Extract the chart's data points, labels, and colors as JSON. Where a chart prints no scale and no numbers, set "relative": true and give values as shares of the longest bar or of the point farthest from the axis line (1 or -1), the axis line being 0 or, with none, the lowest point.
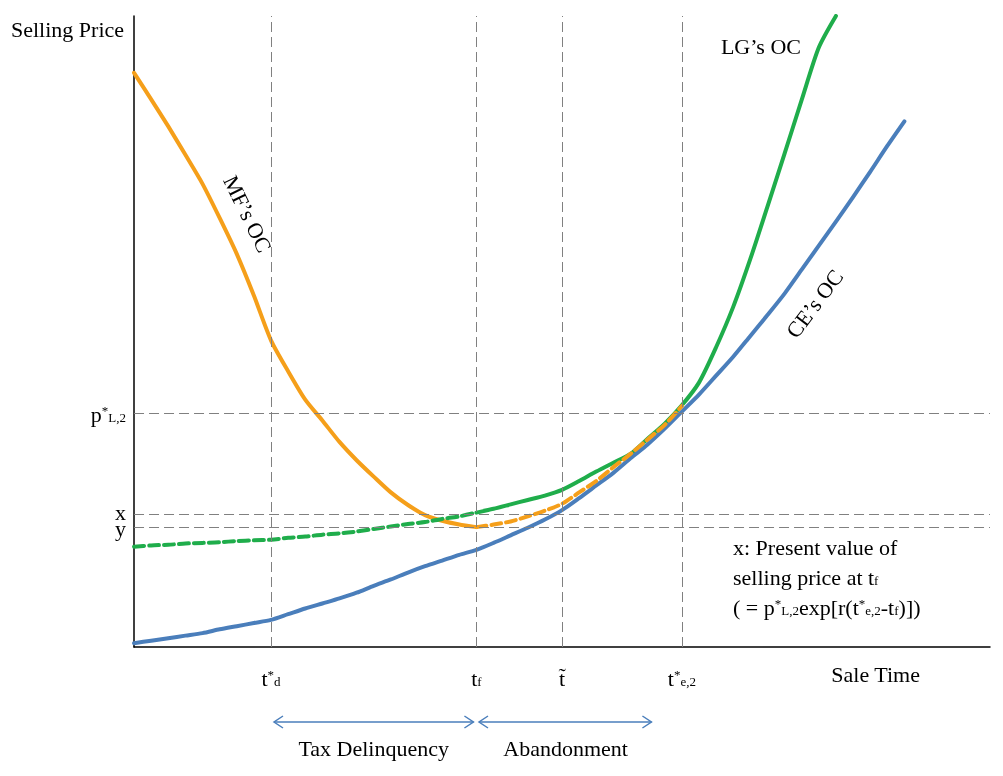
{
  "chart_data": {
    "type": "line",
    "relative": true,
    "xlabel": "Sale Time",
    "ylabel": "Selling Price",
    "marker": "none",
    "grid": false,
    "categories": [
      null,
      null,
      null,
      null,
      null,
      null,
      null,
      null,
      "t$^{*}$$_{d}$",
      null,
      null,
      null,
      null,
      null,
      null,
      null,
      null,
      null,
      null,
      null,
      "t$_{f}$",
      null,
      null,
      null,
      null,
      "t̃",
      null,
      null,
      null,
      null,
      null,
      null,
      "t$^{*}$$_{e,2}$",
      null,
      null,
      null,
      null,
      null,
      null,
      null,
      null,
      null,
      null,
      null,
      null,
      null,
      null,
      null,
      null,
      null,
      null
    ],
    "series": [
      {
        "name": "MF’s OC",
        "color": "#f59f1a",
        "line_style": "solid",
        "values": [
          0.91,
          0.868,
          0.825,
          0.78,
          0.734,
          0.68,
          0.623,
          0.557,
          0.486,
          0.437,
          0.392,
          0.359,
          0.325,
          0.296,
          0.27,
          0.245,
          0.225,
          0.209,
          0.2,
          0.194,
          0.19,
          null,
          null,
          null,
          null,
          null,
          null,
          null,
          null,
          null,
          null,
          null,
          null,
          null,
          null,
          null,
          null,
          null,
          null,
          null,
          null,
          null,
          null,
          null,
          null,
          null,
          null,
          null,
          null,
          null,
          null
        ]
      },
      {
        "color": "#f59f1a",
        "line_style": "dashed",
        "values": [
          null,
          null,
          null,
          null,
          null,
          null,
          null,
          null,
          null,
          null,
          null,
          null,
          null,
          null,
          null,
          null,
          null,
          null,
          null,
          null,
          0.19,
          0.194,
          0.199,
          0.207,
          0.216,
          0.227,
          0.245,
          0.263,
          0.285,
          0.306,
          0.329,
          0.352,
          0.382,
          null,
          null,
          null,
          null,
          null,
          null,
          null,
          null,
          null,
          null,
          null,
          null,
          null,
          null,
          null,
          null,
          null,
          null
        ]
      },
      {
        "color": "#1fad4b",
        "line_style": "dashed",
        "values": [
          0.159,
          0.161,
          0.162,
          0.164,
          0.165,
          0.166,
          0.168,
          0.169,
          0.17,
          0.173,
          0.175,
          0.178,
          0.18,
          0.183,
          0.187,
          0.191,
          0.195,
          0.198,
          0.203,
          0.207,
          0.213,
          null,
          null,
          null,
          null,
          null,
          null,
          null,
          null,
          null,
          null,
          null,
          null,
          null,
          null,
          null,
          null,
          null,
          null,
          null,
          null,
          null,
          null,
          null,
          null,
          null,
          null,
          null,
          null,
          null,
          null
        ]
      },
      {
        "name": "LG’s OC",
        "color": "#1fad4b",
        "line_style": "solid",
        "values": [
          null,
          null,
          null,
          null,
          null,
          null,
          null,
          null,
          null,
          null,
          null,
          null,
          null,
          null,
          null,
          null,
          null,
          null,
          null,
          null,
          0.213,
          0.219,
          0.226,
          0.233,
          0.24,
          0.249,
          0.263,
          0.278,
          0.292,
          0.306,
          0.33,
          0.354,
          0.383,
          0.419,
          0.475,
          0.539,
          0.615,
          0.698,
          0.782,
          0.867,
          0.95,
          1.0,
          null,
          null,
          null,
          null,
          null,
          null,
          null,
          null,
          null
        ]
      },
      {
        "name": "CE’s OC",
        "color": "#4a7ebb",
        "line_style": "solid",
        "values": [
          0.006,
          0.01,
          0.014,
          0.018,
          0.022,
          0.028,
          0.033,
          0.038,
          0.043,
          0.052,
          0.061,
          0.069,
          0.077,
          0.086,
          0.097,
          0.107,
          0.118,
          0.128,
          0.137,
          0.146,
          0.154,
          0.165,
          0.177,
          0.189,
          0.202,
          0.217,
          0.236,
          0.256,
          0.276,
          0.299,
          0.321,
          0.346,
          0.373,
          0.4,
          0.43,
          0.46,
          0.493,
          0.526,
          0.56,
          0.598,
          0.636,
          0.674,
          0.713,
          0.753,
          0.794,
          0.833,
          null,
          null,
          null,
          null,
          null
        ]
      }
    ],
    "ref_lines": [
      {
        "axis": "y",
        "value": 0.369,
        "label": "p$^{*}$$_{L,2}$",
        "color": "#808080",
        "line_style": "dashed"
      },
      {
        "axis": "y",
        "value": 0.213,
        "label": "x",
        "color": "#808080",
        "line_style": "dashed"
      },
      {
        "axis": "y",
        "value": 0.188,
        "label": "y",
        "color": "#808080",
        "line_style": "dashed"
      },
      {
        "axis": "x",
        "value": "t$^{*}$$_{d}$",
        "color": "#808080",
        "line_style": "dashed"
      },
      {
        "axis": "x",
        "value": "t$_{f}$",
        "color": "#808080",
        "line_style": "dashed"
      },
      {
        "axis": "x",
        "value": "t̃",
        "color": "#808080",
        "line_style": "dashed"
      },
      {
        "axis": "x",
        "value": "t$^{*}$$_{e,2}$",
        "color": "#808080",
        "line_style": "dashed"
      }
    ],
    "annotations": [
      "Tax Delinquency",
      "Abandonment",
      "x: Present value of\nselling price at t$_{f}$\n( = p$^{*}$$_{L,2}$exp[r(t$^{*}$$_{e,2}$-t$_{f}$)])"
    ]
  }
}
